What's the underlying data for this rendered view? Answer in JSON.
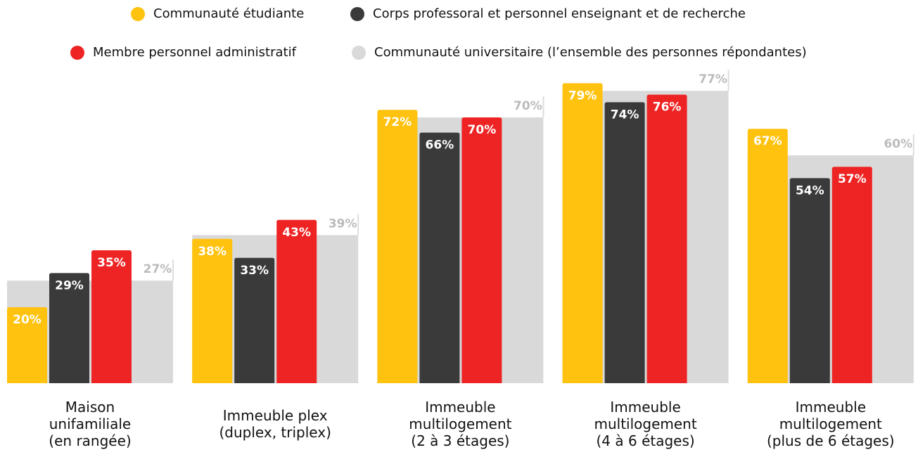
{
  "chart_data": {
    "type": "bar",
    "categories": [
      "Maison\nunifamiliale\n(en rangée)",
      "Immeuble plex\n(duplex, triplex)",
      "Immeuble\nmultilogement\n(2 à 3 étages)",
      "Immeuble\nmultilogement\n(4 à 6 étages)",
      "Immeuble\nmultilogement\n(plus de 6 étages)"
    ],
    "series": [
      {
        "name": "Communauté étudiante",
        "color": "#FFC20E",
        "values": [
          20,
          38,
          72,
          79,
          67
        ],
        "value_labels": [
          "20%",
          "38%",
          "72%",
          "79%",
          "67%"
        ]
      },
      {
        "name": "Corps professoral et personnel enseignant et de recherche",
        "color": "#3A3A3A",
        "values": [
          29,
          33,
          66,
          74,
          54
        ],
        "value_labels": [
          "29%",
          "33%",
          "66%",
          "74%",
          "54%"
        ]
      },
      {
        "name": "Membre personnel administratif",
        "color": "#EE2424",
        "values": [
          35,
          43,
          70,
          76,
          57
        ],
        "value_labels": [
          "35%",
          "43%",
          "70%",
          "76%",
          "57%"
        ]
      },
      {
        "name": "Communauté universitaire (l’ensemble des personnes répondantes)",
        "color": "#D9D9D9",
        "values": [
          27,
          39,
          70,
          77,
          60
        ],
        "value_labels": [
          "27%",
          "39%",
          "70%",
          "77%",
          "60%"
        ]
      }
    ],
    "ylim": [
      0,
      100
    ]
  }
}
